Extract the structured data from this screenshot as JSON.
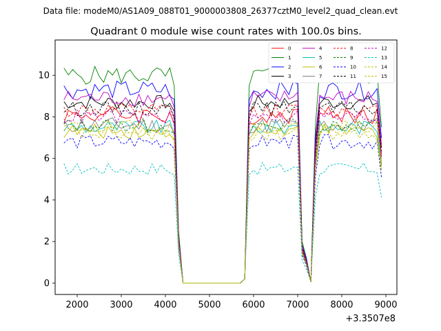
{
  "chart_data": {
    "type": "line",
    "suptitle": "Data file: modeM0/AS1A09_088T01_9000003808_26377cztM0_level2_quad_clean.evt",
    "title": "Quadrant 0 module wise count rates with 100.0s bins.",
    "xlabel": "",
    "ylabel": "",
    "x_offset_label": "+3.3507e8",
    "xlim": [
      1500,
      9250
    ],
    "ylim": [
      -0.55,
      11.7
    ],
    "x_ticks": [
      2000,
      3000,
      4000,
      5000,
      6000,
      7000,
      8000,
      9000
    ],
    "y_ticks": [
      0,
      2,
      4,
      6,
      8,
      10
    ],
    "grid": false,
    "legend_position": "top-right",
    "x_segments": [
      [
        1700,
        4500
      ],
      [
        5800,
        7300
      ],
      [
        7400,
        8900
      ]
    ],
    "bin_seconds": 100,
    "series": [
      {
        "name": "0",
        "color": "#ff0000",
        "dash": "solid",
        "level": 8.1,
        "amp": 0.45,
        "seed": 1
      },
      {
        "name": "1",
        "color": "#008000",
        "dash": "solid",
        "level": 10.0,
        "amp": 0.45,
        "seed": 2
      },
      {
        "name": "2",
        "color": "#0000ff",
        "dash": "solid",
        "level": 9.3,
        "amp": 0.45,
        "seed": 3
      },
      {
        "name": "3",
        "color": "#000000",
        "dash": "solid",
        "level": 8.7,
        "amp": 0.35,
        "seed": 4
      },
      {
        "name": "4",
        "color": "#bf00bf",
        "dash": "solid",
        "level": 8.9,
        "amp": 0.4,
        "seed": 5
      },
      {
        "name": "5",
        "color": "#00bfbf",
        "dash": "solid",
        "level": 7.5,
        "amp": 0.35,
        "seed": 6
      },
      {
        "name": "6",
        "color": "#bfbf00",
        "dash": "solid",
        "level": 7.3,
        "amp": 0.35,
        "seed": 7
      },
      {
        "name": "7",
        "color": "#808080",
        "dash": "solid",
        "level": 7.6,
        "amp": 0.4,
        "seed": 8
      },
      {
        "name": "8",
        "color": "#ff0000",
        "dash": "dashed",
        "level": 8.3,
        "amp": 0.35,
        "seed": 9
      },
      {
        "name": "9",
        "color": "#008000",
        "dash": "dashed",
        "level": 7.6,
        "amp": 0.35,
        "seed": 10
      },
      {
        "name": "10",
        "color": "#0000ff",
        "dash": "dashed",
        "level": 6.8,
        "amp": 0.35,
        "seed": 11
      },
      {
        "name": "11",
        "color": "#000000",
        "dash": "dashed",
        "level": 8.4,
        "amp": 0.35,
        "seed": 12
      },
      {
        "name": "12",
        "color": "#bf00bf",
        "dash": "dashed",
        "level": 8.0,
        "amp": 0.35,
        "seed": 13
      },
      {
        "name": "13",
        "color": "#00bfbf",
        "dash": "dashed",
        "level": 5.5,
        "amp": 0.3,
        "seed": 14
      },
      {
        "name": "14",
        "color": "#bfbf00",
        "dash": "dashed",
        "level": 7.2,
        "amp": 0.35,
        "seed": 15
      },
      {
        "name": "15",
        "color": "#bfbf00",
        "dash": "dashed",
        "level": 7.5,
        "amp": 0.35,
        "seed": 16
      }
    ]
  }
}
